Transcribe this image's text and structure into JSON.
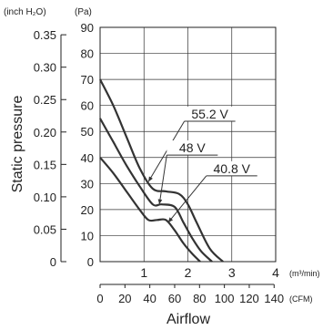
{
  "chart_data": {
    "type": "line",
    "title": "",
    "ylabel": "Static pressure",
    "xlabel": "Airflow",
    "y_units": [
      "(inch H₂O)",
      "(Pa)"
    ],
    "x_units": [
      "(m³/min)",
      "(CFM)"
    ],
    "ylim": [
      0,
      90
    ],
    "xlim": [
      0,
      4
    ],
    "grid": true,
    "pa_ticks": [
      "0",
      "10",
      "20",
      "30",
      "40",
      "50",
      "60",
      "70",
      "80",
      "90"
    ],
    "inch_ticks": [
      {
        "label": "0",
        "pa": 0
      },
      {
        "label": "0.05",
        "pa": 12.45
      },
      {
        "label": "0.10",
        "pa": 24.9
      },
      {
        "label": "0.15",
        "pa": 37.35
      },
      {
        "label": "0.20",
        "pa": 49.8
      },
      {
        "label": "0.25",
        "pa": 62.25
      },
      {
        "label": "0.30",
        "pa": 74.7
      },
      {
        "label": "0.35",
        "pa": 87.15
      }
    ],
    "m3_ticks": [
      "1",
      "2",
      "3",
      "4"
    ],
    "cfm_ticks": [
      {
        "label": "0",
        "cfm": 0
      },
      {
        "label": "20",
        "cfm": 20
      },
      {
        "label": "40",
        "cfm": 40
      },
      {
        "label": "60",
        "cfm": 60
      },
      {
        "label": "80",
        "cfm": 80
      },
      {
        "label": "100",
        "cfm": 100
      },
      {
        "label": "120",
        "cfm": 120
      },
      {
        "label": "140",
        "cfm": 140
      }
    ],
    "series": [
      {
        "name": "55.2 V",
        "x": [
          0,
          0.3,
          0.6,
          0.9,
          1.2,
          1.5,
          1.8,
          2.0,
          2.2,
          2.5,
          2.8
        ],
        "y": [
          70,
          60,
          48,
          36,
          28,
          27,
          26,
          22,
          15,
          5,
          0
        ],
        "label_at": [
          2.5,
          55
        ]
      },
      {
        "name": "48 V",
        "x": [
          0,
          0.3,
          0.6,
          0.9,
          1.2,
          1.4,
          1.7,
          1.9,
          2.1,
          2.3,
          2.55
        ],
        "y": [
          55,
          46,
          37,
          29,
          22,
          22,
          21,
          15,
          9,
          4,
          0
        ],
        "label_at": [
          2.1,
          42
        ]
      },
      {
        "name": "40.8 V",
        "x": [
          0,
          0.3,
          0.6,
          0.9,
          1.1,
          1.3,
          1.5,
          1.7,
          1.9,
          2.1,
          2.28
        ],
        "y": [
          40,
          34,
          27,
          20,
          16,
          16,
          16,
          12,
          7,
          3,
          0
        ],
        "label_at": [
          3.0,
          34
        ]
      }
    ]
  }
}
